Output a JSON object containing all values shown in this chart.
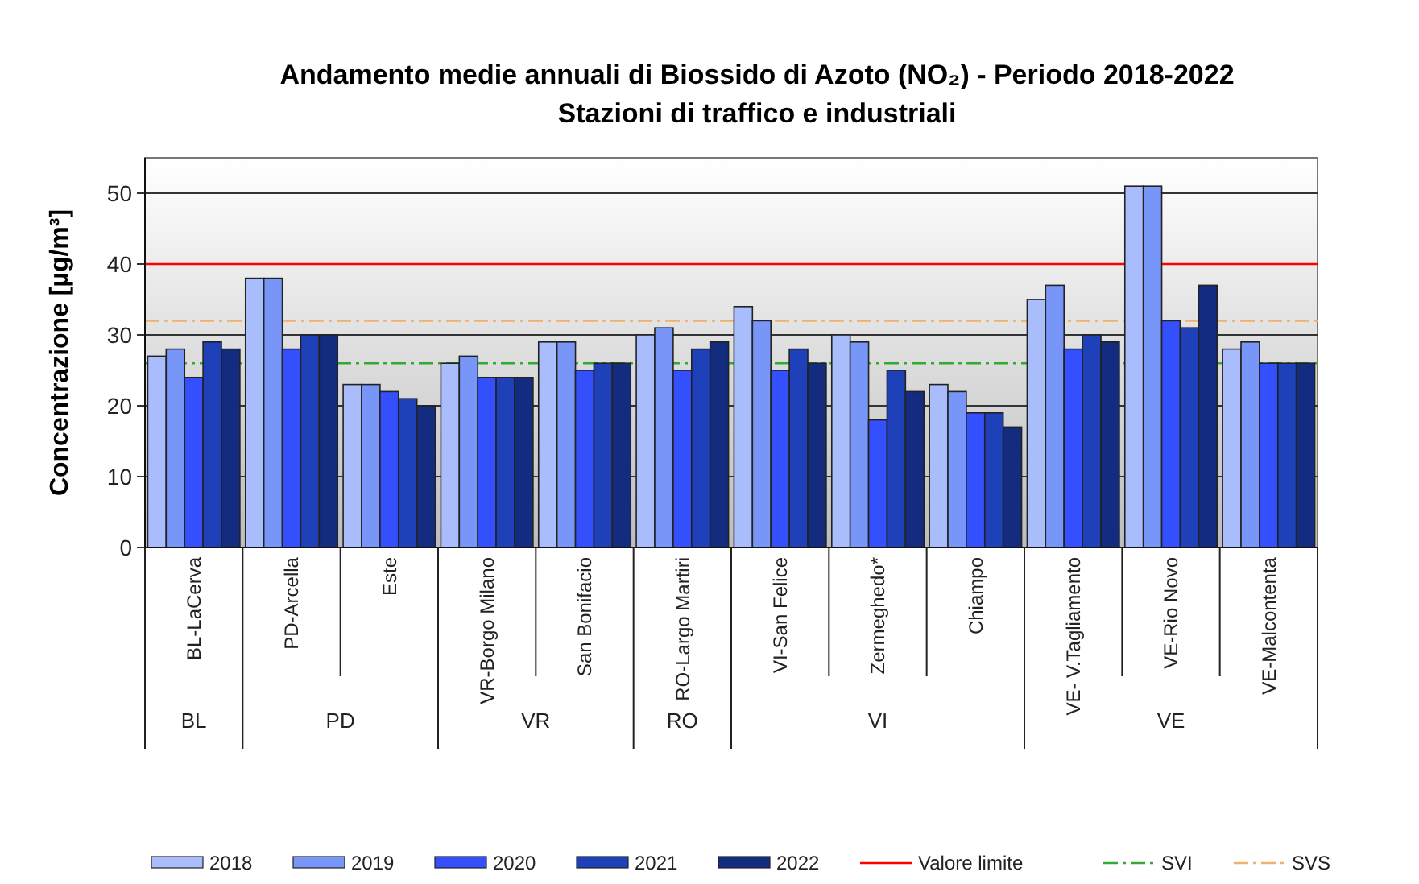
{
  "chart_data": {
    "type": "bar",
    "title": "Andamento medie annuali di Biossido di Azoto (NO₂) - Periodo 2018-2022",
    "subtitle": "Stazioni di traffico e industriali",
    "ylabel": "Concentrazione [µg/m³]",
    "categories": [
      "BL-LaCerva",
      "PD-Arcella",
      "Este",
      "VR-Borgo Milano",
      "San Bonifacio",
      "RO-Largo Martiri",
      "VI-San Felice",
      "Zermeghedo*",
      "Chiampo",
      "VE- V.Tagliamento",
      "VE-Rio Novo",
      "VE-Malcontenta"
    ],
    "series": [
      {
        "name": "2018",
        "color": "#a9bdfc",
        "values": [
          27,
          38,
          23,
          26,
          29,
          30,
          34,
          30,
          23,
          35,
          51,
          28
        ]
      },
      {
        "name": "2019",
        "color": "#7896f8",
        "values": [
          28,
          38,
          23,
          27,
          29,
          31,
          32,
          29,
          22,
          37,
          51,
          29
        ]
      },
      {
        "name": "2020",
        "color": "#3450fc",
        "values": [
          24,
          28,
          22,
          24,
          25,
          25,
          25,
          18,
          19,
          28,
          32,
          26
        ]
      },
      {
        "name": "2021",
        "color": "#1e40b8",
        "values": [
          29,
          30,
          21,
          24,
          26,
          28,
          28,
          25,
          19,
          30,
          31,
          26
        ]
      },
      {
        "name": "2022",
        "color": "#142c80",
        "values": [
          28,
          30,
          20,
          24,
          26,
          29,
          26,
          22,
          17,
          29,
          37,
          26
        ]
      }
    ],
    "ref_lines": [
      {
        "axis": "y",
        "value": 40,
        "label": "Valore limite",
        "color": "#ff0000",
        "line_style": "solid"
      },
      {
        "axis": "y",
        "value": 26,
        "label": "SVI",
        "color": "#33aa33",
        "line_style": "dashed"
      },
      {
        "axis": "y",
        "value": 32,
        "label": "SVS",
        "color": "#f0b070",
        "line_style": "dashed"
      }
    ],
    "annotations": [
      "BL",
      "PD",
      "VR",
      "RO",
      "VI",
      "VE"
    ],
    "ylim": [
      0,
      55
    ],
    "yticks": [
      0,
      10,
      20,
      30,
      40,
      50
    ],
    "grid": "y",
    "legend": "bottom"
  }
}
